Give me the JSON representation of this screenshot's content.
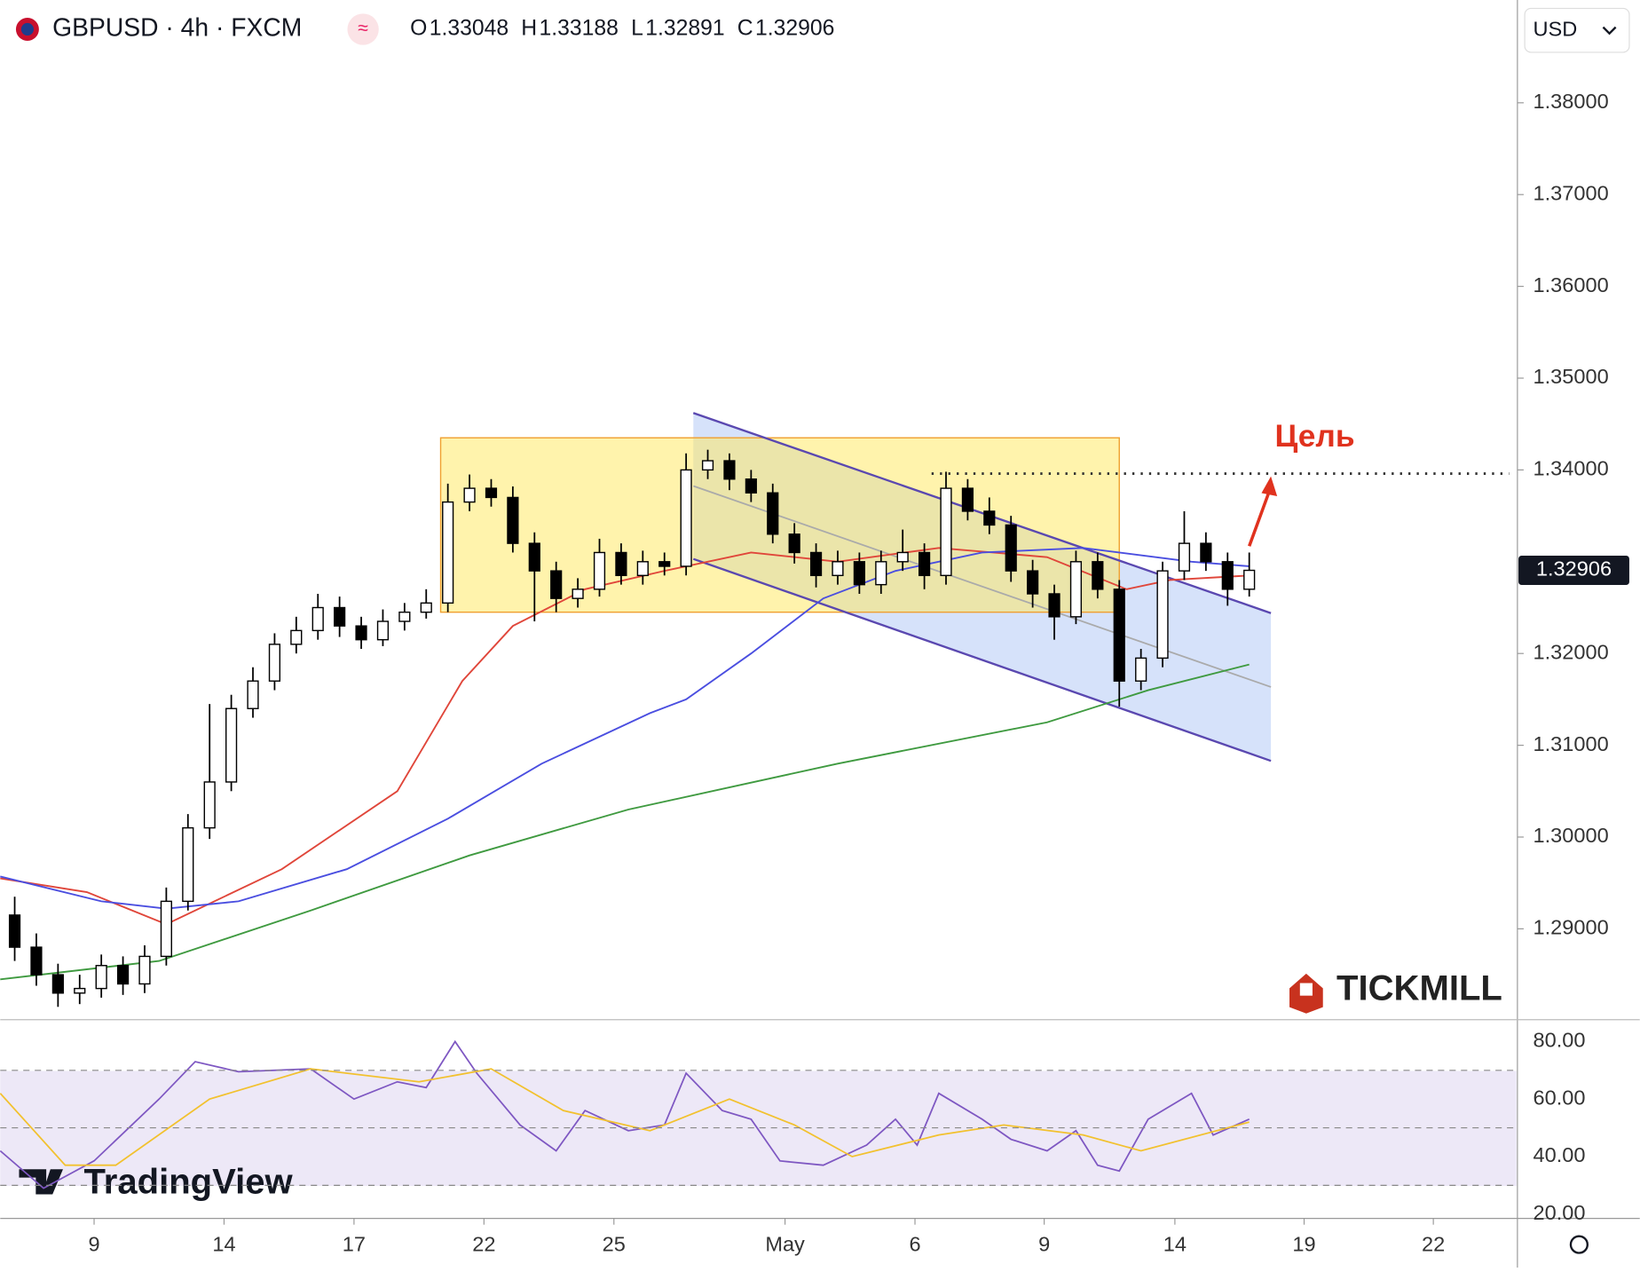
{
  "header": {
    "symbol": "GBPUSD · 4h · FXCM",
    "ohlc": [
      {
        "label": "O",
        "value": 1.33048
      },
      {
        "label": "H",
        "value": 1.33188
      },
      {
        "label": "L",
        "value": 1.32891
      },
      {
        "label": "C",
        "value": 1.32906
      }
    ],
    "currency": "USD",
    "last_price": 1.32906,
    "brand": "TICKMILL",
    "platform": "TradingView"
  },
  "chart_data": [
    {
      "type": "candlestick",
      "xlim": [
        0,
        210
      ],
      "ylim": [
        1.2801,
        1.3912
      ],
      "xticks": [
        {
          "value": 13,
          "label": "9"
        },
        {
          "value": 31,
          "label": "14"
        },
        {
          "value": 49,
          "label": "17"
        },
        {
          "value": 67,
          "label": "22"
        },
        {
          "value": 85,
          "label": "25"
        },
        {
          "value": 108.7,
          "label": "May"
        },
        {
          "value": 126.7,
          "label": "6"
        },
        {
          "value": 144.6,
          "label": "9"
        },
        {
          "value": 162.7,
          "label": "14"
        },
        {
          "value": 180.6,
          "label": "19"
        },
        {
          "value": 198.5,
          "label": "22"
        }
      ],
      "yticks": [
        {
          "value": 1.29,
          "label": "1.29000"
        },
        {
          "value": 1.3,
          "label": "1.30000"
        },
        {
          "value": 1.31,
          "label": "1.31000"
        },
        {
          "value": 1.32,
          "label": "1.32000"
        },
        {
          "value": 1.34,
          "label": "1.34000"
        },
        {
          "value": 1.35,
          "label": "1.35000"
        },
        {
          "value": 1.36,
          "label": "1.36000"
        },
        {
          "value": 1.37,
          "label": "1.37000"
        },
        {
          "value": 1.38,
          "label": "1.38000"
        }
      ],
      "x": [
        2,
        5,
        8,
        11,
        14,
        17,
        20,
        23,
        26,
        29,
        32,
        35,
        38,
        41,
        44,
        47,
        50,
        53,
        56,
        59,
        62,
        65,
        68,
        71,
        74,
        77,
        80,
        83,
        86,
        89,
        92,
        95,
        98,
        101,
        104,
        107,
        110,
        113,
        116,
        119,
        122,
        125,
        128,
        131,
        134,
        137,
        140,
        143,
        146,
        149,
        152,
        155,
        158,
        161,
        164,
        167,
        170,
        173
      ],
      "open": [
        1.2915,
        1.288,
        1.285,
        1.283,
        1.2835,
        1.286,
        1.284,
        1.287,
        1.293,
        1.301,
        1.306,
        1.314,
        1.317,
        1.321,
        1.3225,
        1.325,
        1.323,
        1.3215,
        1.3235,
        1.3245,
        1.3255,
        1.3365,
        1.338,
        1.337,
        1.332,
        1.329,
        1.326,
        1.327,
        1.331,
        1.3285,
        1.33,
        1.3295,
        1.34,
        1.341,
        1.339,
        1.3375,
        1.333,
        1.331,
        1.3285,
        1.33,
        1.3275,
        1.33,
        1.331,
        1.3285,
        1.338,
        1.3355,
        1.334,
        1.329,
        1.3265,
        1.324,
        1.33,
        1.327,
        1.317,
        1.3195,
        1.329,
        1.332,
        1.33,
        1.327
      ],
      "high": [
        1.2935,
        1.2895,
        1.2862,
        1.285,
        1.2872,
        1.287,
        1.2882,
        1.2945,
        1.3025,
        1.3145,
        1.3155,
        1.3185,
        1.3222,
        1.324,
        1.3265,
        1.3262,
        1.324,
        1.3248,
        1.3255,
        1.327,
        1.3385,
        1.3395,
        1.339,
        1.3382,
        1.3332,
        1.33,
        1.3282,
        1.3325,
        1.332,
        1.3312,
        1.331,
        1.3418,
        1.3422,
        1.3418,
        1.34,
        1.3385,
        1.3342,
        1.332,
        1.3312,
        1.331,
        1.3312,
        1.3335,
        1.332,
        1.3398,
        1.339,
        1.337,
        1.335,
        1.3302,
        1.3275,
        1.3312,
        1.331,
        1.328,
        1.3205,
        1.33,
        1.3355,
        1.3332,
        1.331,
        1.331
      ],
      "low": [
        1.2865,
        1.2838,
        1.2815,
        1.2818,
        1.2825,
        1.2828,
        1.283,
        1.286,
        1.292,
        1.2998,
        1.305,
        1.313,
        1.316,
        1.32,
        1.3215,
        1.3218,
        1.3205,
        1.3208,
        1.3225,
        1.3238,
        1.3245,
        1.3355,
        1.336,
        1.331,
        1.3235,
        1.3245,
        1.325,
        1.3262,
        1.3275,
        1.3275,
        1.3285,
        1.3285,
        1.339,
        1.3378,
        1.3365,
        1.332,
        1.3298,
        1.3272,
        1.3275,
        1.3265,
        1.3265,
        1.329,
        1.327,
        1.3275,
        1.3345,
        1.333,
        1.3278,
        1.325,
        1.3215,
        1.3232,
        1.326,
        1.3142,
        1.316,
        1.3185,
        1.328,
        1.329,
        1.3252,
        1.3262
      ],
      "close": [
        1.288,
        1.285,
        1.283,
        1.2835,
        1.286,
        1.284,
        1.287,
        1.293,
        1.301,
        1.306,
        1.314,
        1.317,
        1.321,
        1.3225,
        1.325,
        1.323,
        1.3215,
        1.3235,
        1.3245,
        1.3255,
        1.3365,
        1.338,
        1.337,
        1.332,
        1.329,
        1.326,
        1.327,
        1.331,
        1.3285,
        1.33,
        1.3295,
        1.34,
        1.341,
        1.339,
        1.3375,
        1.333,
        1.331,
        1.3285,
        1.33,
        1.3275,
        1.33,
        1.331,
        1.3285,
        1.338,
        1.3355,
        1.334,
        1.329,
        1.3265,
        1.324,
        1.33,
        1.327,
        1.317,
        1.3195,
        1.329,
        1.332,
        1.33,
        1.327,
        1.32906
      ],
      "series": [
        {
          "color": "#e0463a",
          "x": [
            0,
            12,
            23,
            39,
            55,
            64,
            71,
            81,
            92,
            104,
            116,
            130,
            145,
            156,
            162,
            173
          ],
          "values": [
            1.2955,
            1.294,
            1.2905,
            1.2965,
            1.305,
            1.317,
            1.323,
            1.327,
            1.329,
            1.331,
            1.33,
            1.3315,
            1.3305,
            1.327,
            1.328,
            1.3285
          ]
        },
        {
          "color": "#4a4ee0",
          "x": [
            0,
            14,
            23,
            33,
            48,
            62,
            75,
            90,
            95,
            104,
            114,
            124,
            136,
            150,
            165,
            173
          ],
          "values": [
            1.2957,
            1.293,
            1.2922,
            1.293,
            1.2965,
            1.302,
            1.308,
            1.3135,
            1.315,
            1.32,
            1.326,
            1.329,
            1.331,
            1.3315,
            1.33,
            1.3295
          ]
        },
        {
          "color": "#3f9a40",
          "x": [
            0,
            22,
            43,
            65,
            87,
            116,
            145,
            159,
            173
          ],
          "values": [
            1.2845,
            1.2865,
            1.292,
            1.298,
            1.303,
            1.308,
            1.3125,
            1.316,
            1.3188
          ]
        }
      ],
      "zone": {
        "x": [
          61,
          155
        ],
        "y": [
          1.3245,
          1.3435
        ]
      },
      "channel": {
        "x": [
          96,
          176
        ],
        "upper": [
          1.3462,
          1.3244
        ],
        "lower": [
          1.3303,
          1.3083
        ]
      },
      "target": {
        "label": "Цель",
        "x": [
          129,
          209
        ],
        "value": 1.3396,
        "arrow_x": [
          173,
          176
        ],
        "arrow_y": [
          1.3317,
          1.3393
        ]
      }
    },
    {
      "type": "line",
      "ylim": [
        18.5,
        87.6
      ],
      "yticks": [
        {
          "value": 80,
          "label": "80.00"
        },
        {
          "value": 60,
          "label": "60.00"
        },
        {
          "value": 40,
          "label": "40.00"
        },
        {
          "value": 20,
          "label": "20.00"
        }
      ],
      "levels": [
        70,
        50,
        30
      ],
      "series": [
        {
          "color": "#7e57c2",
          "x": [
            0,
            6,
            13,
            22,
            27,
            33,
            43,
            49,
            55,
            59,
            63,
            66,
            72,
            77,
            81,
            87,
            92,
            95,
            100,
            104,
            108,
            114,
            120,
            124,
            127,
            130,
            136,
            140,
            145,
            149,
            152,
            155,
            159,
            165,
            168,
            173
          ],
          "values": [
            42,
            29,
            38.5,
            60,
            73,
            69.5,
            70.5,
            60,
            66,
            64,
            80,
            69,
            51,
            42,
            56,
            49,
            51,
            69,
            56,
            53,
            38.5,
            37,
            44,
            53,
            44,
            62,
            53,
            46,
            42,
            49,
            37,
            35,
            53,
            62,
            47.5,
            53
          ]
        },
        {
          "color": "#f2c12e",
          "x": [
            0,
            9,
            16,
            29,
            43,
            58,
            68,
            78,
            90,
            101,
            110,
            118,
            130,
            139,
            150,
            158,
            173
          ],
          "values": [
            62,
            37,
            37,
            60,
            70.5,
            66,
            70.5,
            56,
            49,
            60,
            51,
            40,
            47.5,
            51,
            47.5,
            42,
            52
          ]
        }
      ]
    }
  ]
}
